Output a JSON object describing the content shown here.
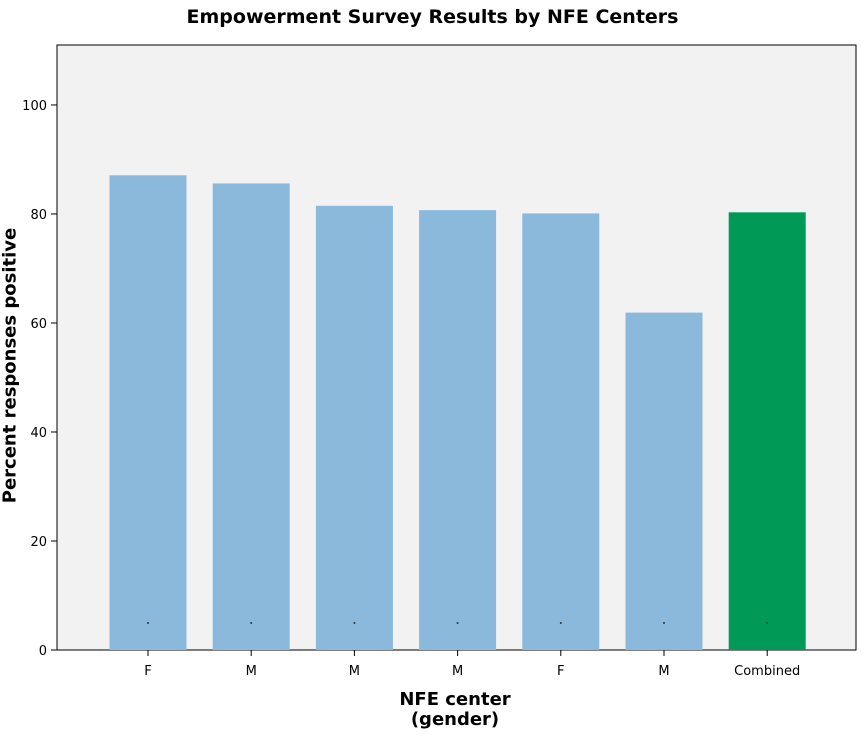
{
  "chart_data": {
    "type": "bar",
    "title": "Empowerment Survey Results by NFE Centers",
    "xlabel": "NFE center\n(gender)",
    "ylabel": "Percent responses positive",
    "categories": [
      "F",
      "M",
      "M",
      "M",
      "F",
      "M",
      "Combined"
    ],
    "values": [
      87.1,
      85.6,
      81.5,
      80.7,
      80.1,
      61.9,
      80.3
    ],
    "ylim": [
      0,
      111
    ],
    "yticks": [
      0,
      20,
      40,
      60,
      80,
      100
    ],
    "grid": false,
    "colors": {
      "bar": "#8ab9dc",
      "highlight": "#009955",
      "plot_background": "#f2f2f2"
    },
    "highlight_category": "Combined"
  }
}
